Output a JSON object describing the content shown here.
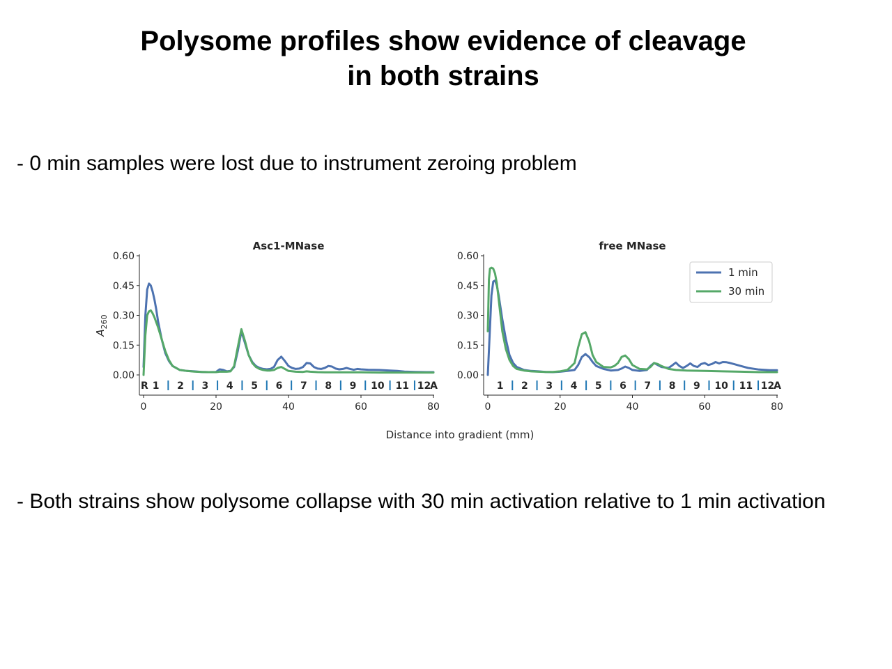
{
  "slide": {
    "title_line1": "Polysome profiles show evidence of cleavage",
    "title_line2": "in both strains",
    "bullet1": "- 0 min samples were lost due to instrument zeroing problem",
    "bullet2": "- Both strains show polysome collapse with 30 min activation relative to 1 min activation"
  },
  "chart_data": [
    {
      "type": "line",
      "title": "Asc1-MNase",
      "ylabel": "A260",
      "xlabel": "Distance into gradient (mm)",
      "xlim": [
        0,
        80
      ],
      "ylim": [
        0,
        0.6
      ],
      "xticks": [
        0,
        20,
        40,
        60,
        80
      ],
      "yticks": [
        "0.00",
        "0.15",
        "0.30",
        "0.45",
        "0.60"
      ],
      "fraction_labels": [
        "R",
        "1",
        "2",
        "3",
        "4",
        "5",
        "6",
        "7",
        "8",
        "9",
        "10",
        "11",
        "12",
        "A"
      ],
      "fraction_boundaries_mm": [
        6.8,
        13.6,
        20.4,
        27.2,
        34,
        40.8,
        47.6,
        54.4,
        61.2,
        68,
        74.8
      ],
      "series": [
        {
          "name": "1 min",
          "color": "#4c72b0",
          "x": [
            0,
            0.5,
            1,
            1.5,
            2,
            2.5,
            3,
            3.5,
            4,
            5,
            6,
            7,
            8,
            10,
            12,
            14,
            16,
            18,
            20,
            21,
            22,
            23,
            24,
            25,
            26,
            27,
            28,
            29,
            30,
            31,
            32,
            33,
            34,
            35,
            36,
            37,
            38,
            39,
            40,
            41,
            42,
            43,
            44,
            45,
            46,
            47,
            48,
            49,
            50,
            51,
            52,
            53,
            54,
            55,
            56,
            57,
            58,
            59,
            60,
            62,
            65,
            68,
            70,
            72,
            75,
            78,
            80
          ],
          "y": [
            0.04,
            0.3,
            0.43,
            0.46,
            0.45,
            0.42,
            0.38,
            0.33,
            0.27,
            0.18,
            0.11,
            0.07,
            0.045,
            0.025,
            0.02,
            0.018,
            0.015,
            0.014,
            0.015,
            0.028,
            0.025,
            0.018,
            0.02,
            0.04,
            0.12,
            0.22,
            0.16,
            0.1,
            0.065,
            0.045,
            0.035,
            0.03,
            0.028,
            0.03,
            0.04,
            0.075,
            0.092,
            0.07,
            0.045,
            0.035,
            0.03,
            0.032,
            0.04,
            0.06,
            0.058,
            0.04,
            0.032,
            0.03,
            0.035,
            0.045,
            0.042,
            0.032,
            0.028,
            0.03,
            0.035,
            0.03,
            0.026,
            0.03,
            0.028,
            0.026,
            0.025,
            0.022,
            0.02,
            0.017,
            0.015,
            0.014,
            0.014
          ]
        },
        {
          "name": "30 min",
          "color": "#55a868",
          "x": [
            0,
            0.5,
            1,
            1.5,
            2,
            2.5,
            3,
            3.5,
            4,
            5,
            6,
            7,
            8,
            10,
            12,
            14,
            16,
            18,
            20,
            21,
            22,
            23,
            24,
            25,
            26,
            27,
            28,
            29,
            30,
            31,
            32,
            33,
            34,
            35,
            36,
            37,
            38,
            39,
            40,
            42,
            44,
            45,
            46,
            48,
            50,
            55,
            60,
            65,
            70,
            75,
            80
          ],
          "y": [
            0.0,
            0.2,
            0.3,
            0.32,
            0.325,
            0.31,
            0.29,
            0.265,
            0.24,
            0.18,
            0.12,
            0.075,
            0.045,
            0.025,
            0.02,
            0.017,
            0.015,
            0.014,
            0.014,
            0.016,
            0.017,
            0.016,
            0.018,
            0.045,
            0.14,
            0.23,
            0.17,
            0.1,
            0.06,
            0.04,
            0.03,
            0.025,
            0.022,
            0.022,
            0.025,
            0.035,
            0.04,
            0.03,
            0.02,
            0.016,
            0.015,
            0.018,
            0.016,
            0.014,
            0.013,
            0.013,
            0.013,
            0.012,
            0.012,
            0.012,
            0.012
          ]
        }
      ]
    },
    {
      "type": "line",
      "title": "free MNase",
      "ylabel": "",
      "xlabel": "",
      "xlim": [
        0,
        80
      ],
      "ylim": [
        0,
        0.6
      ],
      "xticks": [
        0,
        20,
        40,
        60,
        80
      ],
      "yticks": [
        "0.00",
        "0.15",
        "0.30",
        "0.45",
        "0.60"
      ],
      "fraction_labels": [
        "1",
        "2",
        "3",
        "4",
        "5",
        "6",
        "7",
        "8",
        "9",
        "10",
        "11",
        "12",
        "A"
      ],
      "fraction_boundaries_mm": [
        6.8,
        13.6,
        20.4,
        27.2,
        34,
        40.8,
        47.6,
        54.4,
        61.2,
        68,
        74.8
      ],
      "legend": {
        "position": "top-right",
        "entries": [
          "1 min",
          "30 min"
        ]
      },
      "series": [
        {
          "name": "1 min",
          "color": "#4c72b0",
          "x": [
            0,
            0.5,
            1,
            1.5,
            2,
            2.5,
            3,
            3.5,
            4,
            5,
            6,
            7,
            8,
            10,
            12,
            14,
            16,
            18,
            20,
            22,
            24,
            25,
            26,
            27,
            28,
            29,
            30,
            32,
            34,
            36,
            37,
            38,
            39,
            40,
            42,
            44,
            45,
            46,
            48,
            50,
            51,
            52,
            53,
            54,
            55,
            56,
            57,
            58,
            59,
            60,
            61,
            62,
            63,
            64,
            65,
            66,
            67,
            68,
            70,
            72,
            75,
            78,
            80
          ],
          "y": [
            0.0,
            0.2,
            0.4,
            0.47,
            0.475,
            0.45,
            0.4,
            0.34,
            0.28,
            0.18,
            0.1,
            0.06,
            0.04,
            0.025,
            0.02,
            0.018,
            0.015,
            0.014,
            0.016,
            0.02,
            0.025,
            0.05,
            0.09,
            0.105,
            0.09,
            0.065,
            0.045,
            0.03,
            0.022,
            0.025,
            0.032,
            0.042,
            0.035,
            0.025,
            0.02,
            0.025,
            0.045,
            0.06,
            0.04,
            0.035,
            0.048,
            0.062,
            0.045,
            0.035,
            0.045,
            0.058,
            0.045,
            0.04,
            0.055,
            0.06,
            0.05,
            0.055,
            0.065,
            0.058,
            0.065,
            0.064,
            0.06,
            0.055,
            0.045,
            0.035,
            0.027,
            0.024,
            0.024
          ]
        },
        {
          "name": "30 min",
          "color": "#55a868",
          "x": [
            0,
            0.3,
            0.6,
            1,
            1.5,
            2,
            2.5,
            3,
            3.5,
            4,
            5,
            6,
            7,
            8,
            10,
            12,
            14,
            16,
            18,
            20,
            22,
            24,
            25,
            26,
            27,
            28,
            29,
            30,
            32,
            34,
            35,
            36,
            37,
            38,
            39,
            40,
            42,
            44,
            45,
            46,
            47,
            48,
            50,
            52,
            55,
            60,
            65,
            70,
            75,
            80
          ],
          "y": [
            0.22,
            0.48,
            0.535,
            0.54,
            0.535,
            0.51,
            0.46,
            0.38,
            0.3,
            0.22,
            0.13,
            0.075,
            0.045,
            0.03,
            0.022,
            0.018,
            0.016,
            0.015,
            0.015,
            0.018,
            0.025,
            0.06,
            0.14,
            0.205,
            0.215,
            0.17,
            0.1,
            0.065,
            0.04,
            0.038,
            0.045,
            0.06,
            0.09,
            0.098,
            0.08,
            0.05,
            0.03,
            0.028,
            0.04,
            0.06,
            0.055,
            0.045,
            0.03,
            0.025,
            0.022,
            0.02,
            0.018,
            0.016,
            0.014,
            0.014
          ]
        }
      ]
    }
  ],
  "figure": {
    "xlabel": "Distance into gradient (mm)",
    "ylabel_main": "A",
    "ylabel_sub": "260"
  }
}
